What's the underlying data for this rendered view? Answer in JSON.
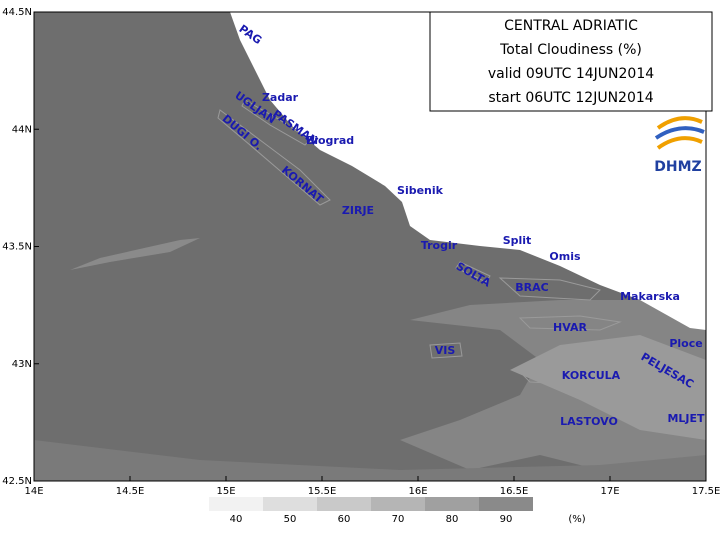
{
  "map": {
    "title_box": [
      "CENTRAL ADRIATIC",
      "Total Cloudiness (%)",
      "valid 09UTC 14JUN2014",
      "start 06UTC 12JUN2014"
    ],
    "logo": "DHMZ",
    "xlim": [
      14,
      17.5
    ],
    "ylim": [
      42.5,
      44.5
    ],
    "xticks": [
      {
        "value": 14,
        "label": "14E"
      },
      {
        "value": 14.5,
        "label": "14.5E"
      },
      {
        "value": 15,
        "label": "15E"
      },
      {
        "value": 15.5,
        "label": "15.5E"
      },
      {
        "value": 16,
        "label": "16E"
      },
      {
        "value": 16.5,
        "label": "16.5E"
      },
      {
        "value": 17,
        "label": "17E"
      },
      {
        "value": 17.5,
        "label": "17.5E"
      }
    ],
    "yticks": [
      {
        "value": 42.5,
        "label": "42.5N"
      },
      {
        "value": 43,
        "label": "43N"
      },
      {
        "value": 43.5,
        "label": "43.5N"
      },
      {
        "value": 44,
        "label": "44N"
      },
      {
        "value": 44.5,
        "label": "44.5N"
      }
    ],
    "places": [
      "PAG",
      "Zadar",
      "UGLJAN",
      "PASMAN",
      "Biograd",
      "DUGI O.",
      "KORNAT",
      "Sibenik",
      "ZIRJE",
      "Trogir",
      "Split",
      "Omis",
      "SOLTA",
      "BRAC",
      "Makarska",
      "HVAR",
      "VIS",
      "Ploce",
      "PELJESAC",
      "KORCULA",
      "LASTOVO",
      "MLJET"
    ],
    "colorbar": {
      "ticks": [
        40,
        50,
        60,
        70,
        80,
        90
      ],
      "colors": [
        "#f2f2f2",
        "#dedede",
        "#c9c9c9",
        "#b5b5b5",
        "#a0a0a0",
        "#8a8a8a"
      ],
      "unit": "(%)"
    }
  }
}
